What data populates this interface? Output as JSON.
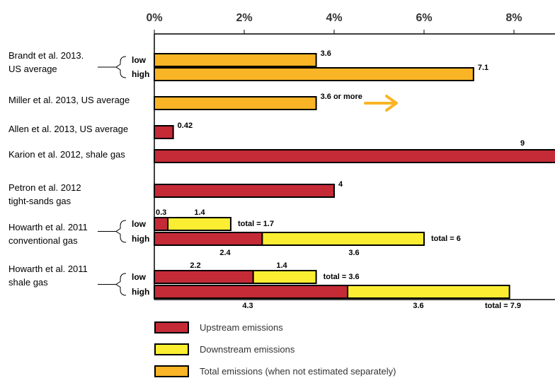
{
  "colors": {
    "upstream": "#c52a37",
    "downstream": "#fbee32",
    "total": "#f9b526",
    "arrow": "#f9b526"
  },
  "chart_data": {
    "type": "bar",
    "orientation": "horizontal",
    "stacked": true,
    "units": "%",
    "xlim": [
      0,
      8.5
    ],
    "x_ticks": [
      0,
      2,
      4,
      6,
      8
    ],
    "x_tick_labels": [
      "0%",
      "2%",
      "4%",
      "6%",
      "8%"
    ],
    "legend_position": "bottom",
    "series": [
      {
        "name": "Upstream emissions",
        "color_key": "upstream"
      },
      {
        "name": "Downstream emissions",
        "color_key": "downstream"
      },
      {
        "name": "Total emissions (when not estimated separately)",
        "color_key": "total"
      }
    ],
    "studies": [
      {
        "label": [
          "Brandt et al. 2013.",
          "US average"
        ],
        "bars": [
          {
            "sublabel": "low",
            "segments": [
              {
                "series": "total",
                "value": 3.6,
                "label": "3.6"
              }
            ]
          },
          {
            "sublabel": "high",
            "segments": [
              {
                "series": "total",
                "value": 7.1,
                "label": "7.1"
              }
            ]
          }
        ]
      },
      {
        "label": [
          "Miller et al. 2013, US average"
        ],
        "bars": [
          {
            "sublabel": "",
            "segments": [
              {
                "series": "total",
                "value": 3.6,
                "label": "3.6 or more"
              }
            ],
            "arrow": true
          }
        ]
      },
      {
        "label": [
          "Allen et al. 2013, US average"
        ],
        "bars": [
          {
            "sublabel": "",
            "segments": [
              {
                "series": "upstream",
                "value": 0.42,
                "label": "0.42"
              }
            ]
          }
        ]
      },
      {
        "label": [
          "Karion et al. 2012, shale gas"
        ],
        "bars": [
          {
            "sublabel": "",
            "segments": [
              {
                "series": "upstream",
                "value": 9,
                "label": "9"
              }
            ]
          }
        ]
      },
      {
        "label": [
          "Petron et al. 2012",
          "tight-sands gas"
        ],
        "bars": [
          {
            "sublabel": "",
            "segments": [
              {
                "series": "upstream",
                "value": 4,
                "label": "4"
              }
            ]
          }
        ]
      },
      {
        "label": [
          "Howarth et al. 2011",
          "conventional gas"
        ],
        "bars": [
          {
            "sublabel": "low",
            "segments": [
              {
                "series": "upstream",
                "value": 0.3,
                "label": "0.3"
              },
              {
                "series": "downstream",
                "value": 1.4,
                "label": "1.4"
              }
            ],
            "total_label": "total = 1.7"
          },
          {
            "sublabel": "high",
            "segments": [
              {
                "series": "upstream",
                "value": 2.4,
                "label": "2.4"
              },
              {
                "series": "downstream",
                "value": 3.6,
                "label": "3.6"
              }
            ],
            "total_label": "total = 6"
          }
        ]
      },
      {
        "label": [
          "Howarth et al. 2011",
          "shale gas"
        ],
        "bars": [
          {
            "sublabel": "low",
            "segments": [
              {
                "series": "upstream",
                "value": 2.2,
                "label": "2.2"
              },
              {
                "series": "downstream",
                "value": 1.4,
                "label": "1.4"
              }
            ],
            "total_label": "total = 3.6"
          },
          {
            "sublabel": "high",
            "segments": [
              {
                "series": "upstream",
                "value": 4.3,
                "label": "4.3"
              },
              {
                "series": "downstream",
                "value": 3.6,
                "label": "3.6"
              }
            ],
            "total_label": "total = 7.9"
          }
        ]
      }
    ]
  }
}
